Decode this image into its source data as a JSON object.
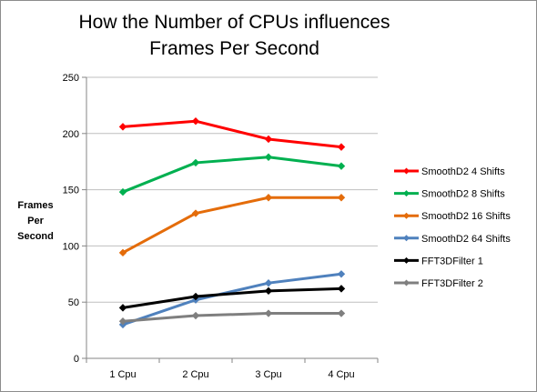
{
  "chart_data": {
    "type": "line",
    "title_lines": [
      "How the Number of CPUs influences",
      "Frames Per Second"
    ],
    "xlabel": "",
    "ylabel_lines": [
      "Frames",
      "Per",
      "Second"
    ],
    "categories": [
      "1 Cpu",
      "2 Cpu",
      "3 Cpu",
      "4 Cpu"
    ],
    "ylim": [
      0,
      250
    ],
    "yticks": [
      0,
      50,
      100,
      150,
      200,
      250
    ],
    "grid": {
      "horizontal": true,
      "vertical": false
    },
    "legend_position": "right",
    "series": [
      {
        "name": "SmoothD2  4 Shifts",
        "color": "#ff0000",
        "marker": "diamond",
        "values": [
          206,
          211,
          195,
          188
        ]
      },
      {
        "name": "SmoothD2  8 Shifts",
        "color": "#00b050",
        "marker": "diamond",
        "values": [
          148,
          174,
          179,
          171
        ]
      },
      {
        "name": "SmoothD2  16 Shifts",
        "color": "#e46c0a",
        "marker": "diamond",
        "values": [
          94,
          129,
          143,
          143
        ]
      },
      {
        "name": "SmoothD2  64 Shifts",
        "color": "#4f81bd",
        "marker": "diamond",
        "values": [
          30,
          52,
          67,
          75
        ]
      },
      {
        "name": "FFT3DFilter 1",
        "color": "#000000",
        "marker": "diamond",
        "values": [
          45,
          55,
          60,
          62
        ]
      },
      {
        "name": "FFT3DFilter 2",
        "color": "#7f7f7f",
        "marker": "diamond",
        "values": [
          33,
          38,
          40,
          40
        ]
      }
    ]
  }
}
